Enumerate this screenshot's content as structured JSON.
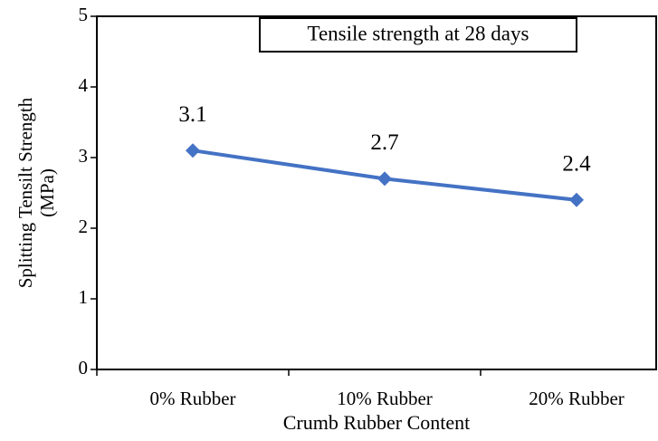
{
  "chart_data": {
    "type": "line",
    "title": "Tensile strength  at 28 days",
    "ylabel": [
      "Splitting  Tensilt Strength",
      "(MPa)"
    ],
    "xlabel": "Crumb Rubber Content",
    "categories": [
      "0% Rubber",
      "10% Rubber",
      "20% Rubber"
    ],
    "values": [
      3.1,
      2.7,
      2.4
    ],
    "color": "#4472c4",
    "ylim": [
      0,
      5
    ],
    "yticks": [
      0,
      1,
      2,
      3,
      4,
      5
    ],
    "grid": false
  }
}
